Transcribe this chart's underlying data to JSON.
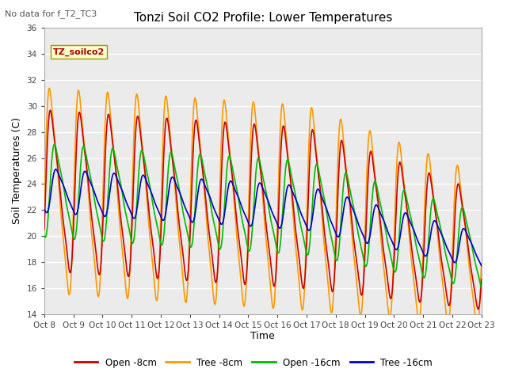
{
  "title": "Tonzi Soil CO2 Profile: Lower Temperatures",
  "subtitle": "No data for f_T2_TC3",
  "ylabel": "Soil Temperatures (C)",
  "xlabel": "Time",
  "ylim": [
    14,
    36
  ],
  "yticks": [
    14,
    16,
    18,
    20,
    22,
    24,
    26,
    28,
    30,
    32,
    34,
    36
  ],
  "xtick_labels": [
    "Oct 8",
    "Oct 9",
    "Oct 10",
    "Oct 11",
    "Oct 12",
    "Oct 13",
    "Oct 14",
    "Oct 15",
    "Oct 16",
    "Oct 17",
    "Oct 18",
    "Oct 19",
    "Oct 20",
    "Oct 21",
    "Oct 22",
    "Oct 23"
  ],
  "legend_label": "TZ_soilco2",
  "colors": {
    "open_8cm": "#cc0000",
    "tree_8cm": "#ff9900",
    "open_16cm": "#00bb00",
    "tree_16cm": "#0000cc"
  },
  "plot_bg": "#ebebeb",
  "line_width": 1.2,
  "n_points": 720
}
